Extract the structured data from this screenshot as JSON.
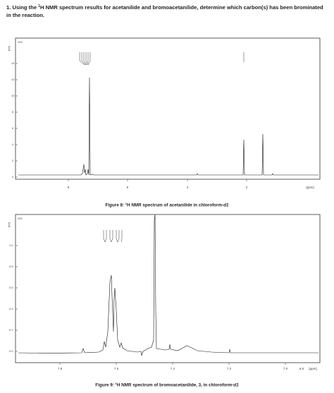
{
  "question": {
    "number": "1.",
    "prefix": "Using the ",
    "superscript": "1",
    "suffix": "H NMR spectrum results for acetanilide and bromoacetanilide, determine which carbon(s) has been brominated in the reaction."
  },
  "figures": [
    {
      "caption": {
        "label": "Figure 8: ",
        "superscript": "1",
        "text": "H NMR spectrum of acetanilide in chloroform-",
        "italic": "d1"
      },
      "x_unit": "[ppm]",
      "y_unit": "[rel]",
      "corner_label": "200",
      "x_ticks": [
        "8",
        "6",
        "4",
        "2"
      ],
      "y_ticks": [
        "14",
        "12",
        "10",
        "8",
        "6",
        "4",
        "2",
        "0"
      ]
    },
    {
      "caption": {
        "label": "Figure 9: ",
        "superscript": "1",
        "text": "H NMR spectrum of bromoacetanilide, 3, in chloroform-",
        "italic": "d1"
      },
      "x_unit": "[ppm]",
      "y_unit": "[rel]",
      "corner_label": "200",
      "x_ticks": [
        "7.8",
        "7.6",
        "7.4",
        "7.2",
        "7.0",
        "6.8"
      ],
      "y_ticks": [
        "1.0",
        "0.8",
        "0.6",
        "0.4",
        "0.2",
        "0.0"
      ]
    }
  ]
}
